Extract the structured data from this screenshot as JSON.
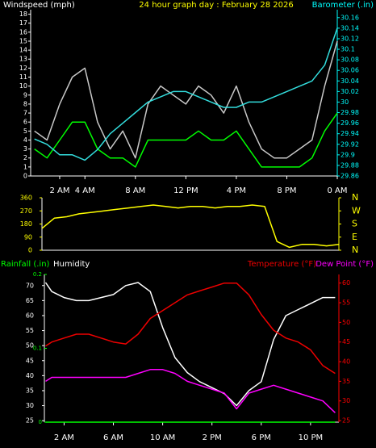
{
  "chart_data": [
    {
      "type": "line",
      "title": "24 hour graph day : February 28 2026",
      "ylabel": "Windspeed (mph)",
      "y2label": "Barometer (.in)",
      "title_color": "#ffff00",
      "ycolor": "#ffffff",
      "y2color": "#00ffff",
      "x": [
        0,
        1,
        2,
        3,
        4,
        5,
        6,
        7,
        8,
        9,
        10,
        11,
        12,
        13,
        14,
        15,
        16,
        17,
        18,
        19,
        20,
        21,
        22,
        23,
        24
      ],
      "xlim": [
        -0.3,
        24
      ],
      "xticks": [
        {
          "value": 2,
          "label": "2 AM"
        },
        {
          "value": 4,
          "label": "4 AM"
        },
        {
          "value": 8,
          "label": "8 AM"
        },
        {
          "value": 12,
          "label": "12 PM"
        },
        {
          "value": 16,
          "label": "4 PM"
        },
        {
          "value": 20,
          "label": "8 PM"
        },
        {
          "value": 24,
          "label": "0 AM"
        }
      ],
      "ylim": [
        0,
        18.5
      ],
      "yticks": [
        0,
        1,
        2,
        3,
        4,
        5,
        6,
        7,
        8,
        9,
        10,
        11,
        12,
        13,
        14,
        15,
        16,
        17,
        18
      ],
      "y2lim": [
        29.86,
        30.175
      ],
      "y2ticks": [
        29.86,
        29.88,
        29.9,
        29.92,
        29.94,
        29.96,
        29.98,
        30,
        30.02,
        30.04,
        30.06,
        30.08,
        30.1,
        30.12,
        30.14,
        30.16
      ],
      "series": [
        {
          "color": "#c8c8c8",
          "values": [
            5,
            4,
            8,
            11,
            12,
            6,
            3,
            5,
            2,
            8,
            10,
            9,
            8,
            10,
            9,
            7,
            10,
            6,
            3,
            2,
            2,
            3,
            4,
            10,
            15
          ]
        },
        {
          "color": "#00ff00",
          "values": [
            3,
            2,
            4,
            6,
            6,
            3,
            2,
            2,
            1,
            4,
            4,
            4,
            4,
            5,
            4,
            4,
            5,
            3,
            1,
            1,
            1,
            1,
            2,
            5,
            7
          ]
        },
        {
          "name": "Barometer (.in)",
          "axis": "y2",
          "color": "#33dddd",
          "values": [
            29.93,
            29.92,
            29.9,
            29.9,
            29.89,
            29.91,
            29.94,
            29.96,
            29.98,
            30,
            30.01,
            30.02,
            30.02,
            30.01,
            30,
            29.99,
            29.99,
            30,
            30,
            30.01,
            30.02,
            30.03,
            30.04,
            30.07,
            30.14
          ]
        }
      ]
    },
    {
      "type": "line",
      "ycolor": "#ffff00",
      "y2color": "#ffff00",
      "x": [
        0,
        1,
        2,
        3,
        4,
        5,
        6,
        7,
        8,
        9,
        10,
        11,
        12,
        13,
        14,
        15,
        16,
        17,
        18,
        19,
        20,
        21,
        22,
        23,
        24
      ],
      "xlim": [
        0,
        24
      ],
      "ylim": [
        0,
        360
      ],
      "yticks": [
        0,
        90,
        180,
        270,
        360
      ],
      "y2lim": [
        0,
        360
      ],
      "y2ticks": [
        {
          "value": 0,
          "label": "N"
        },
        {
          "value": 90,
          "label": "E"
        },
        {
          "value": 180,
          "label": "S"
        },
        {
          "value": 270,
          "label": "W"
        },
        {
          "value": 360,
          "label": "N"
        }
      ],
      "series": [
        {
          "color": "#ffff00",
          "values": [
            150,
            220,
            230,
            250,
            260,
            270,
            280,
            290,
            300,
            310,
            300,
            290,
            300,
            300,
            290,
            300,
            300,
            310,
            300,
            60,
            20,
            40,
            40,
            30,
            40
          ]
        }
      ]
    },
    {
      "type": "line",
      "ycolor": "#ffffff",
      "y2color": "#ff0000",
      "y3color": "#00ff00",
      "x": [
        0.5,
        1,
        2,
        3,
        4,
        5,
        6,
        7,
        8,
        9,
        10,
        11,
        12,
        13,
        14,
        15,
        16,
        17,
        18,
        19,
        20,
        21,
        22,
        23,
        24
      ],
      "xlim": [
        0.4,
        24.3
      ],
      "xticks": [
        {
          "value": 2,
          "label": "2 AM"
        },
        {
          "value": 6,
          "label": "6 AM"
        },
        {
          "value": 10,
          "label": "10 AM"
        },
        {
          "value": 14,
          "label": "2 PM"
        },
        {
          "value": 18,
          "label": "6 PM"
        },
        {
          "value": 22,
          "label": "10 PM"
        }
      ],
      "ylim": [
        24.5,
        73.7
      ],
      "yticks": [
        25,
        30,
        35,
        40,
        45,
        50,
        55,
        60,
        65,
        70
      ],
      "y2lim": [
        24.6,
        62.2
      ],
      "y2ticks": [
        25,
        30,
        35,
        40,
        45,
        50,
        55,
        60
      ],
      "y3lim": [
        0,
        0.2
      ],
      "y3ticks": [
        0,
        0.1,
        0.2
      ],
      "series": [
        {
          "name": "Rainfall (.in)",
          "axis": "y3",
          "color": "#00ff00",
          "values": [
            0,
            0,
            0,
            0,
            0,
            0,
            0,
            0,
            0,
            0,
            0,
            0,
            0,
            0,
            0,
            0,
            0,
            0,
            0,
            0,
            0,
            0,
            0,
            0,
            0
          ]
        },
        {
          "name": "Humidity",
          "color": "#ffffff",
          "values": [
            71,
            68,
            66,
            65,
            65,
            66,
            67,
            70,
            71,
            68,
            56,
            46,
            41,
            38,
            36,
            34,
            30,
            35,
            38,
            52,
            60,
            62,
            64,
            66,
            66
          ]
        },
        {
          "name": "Temperature (°F)",
          "axis": "y2",
          "color": "#ee0000",
          "values": [
            44,
            45,
            46,
            47,
            47,
            46,
            45,
            44.5,
            47,
            51,
            53,
            55,
            57,
            58,
            59,
            60,
            60,
            57,
            52,
            48,
            46,
            45,
            43,
            39,
            37
          ]
        },
        {
          "name": "Dew Point (°F)",
          "axis": "y2",
          "color": "#ff00ff",
          "values": [
            35,
            36,
            36,
            36,
            36,
            36,
            36,
            36,
            37,
            38,
            38,
            37,
            35,
            34,
            33,
            32,
            28,
            32,
            33,
            34,
            33,
            32,
            31,
            30,
            27
          ]
        }
      ]
    }
  ]
}
